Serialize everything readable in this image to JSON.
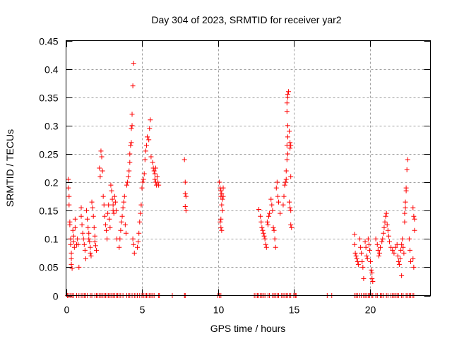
{
  "chart_data": {
    "type": "scatter",
    "title": "Day 304 of 2023, SRMTID for receiver yar2",
    "xlabel": "GPS time / hours",
    "ylabel": "SRMTID / TECUs",
    "xlim": [
      0,
      24
    ],
    "ylim": [
      0,
      0.45
    ],
    "xticks": [
      0,
      5,
      10,
      15,
      20
    ],
    "xtick_labels": [
      "0",
      "5",
      "10",
      "15",
      "20"
    ],
    "yticks": [
      0,
      0.05,
      0.1,
      0.15,
      0.2,
      0.25,
      0.3,
      0.35,
      0.4,
      0.45
    ],
    "ytick_labels": [
      "0",
      "0.05",
      "0.1",
      "0.15",
      "0.2",
      "0.25",
      "0.3",
      "0.35",
      "0.4",
      "0.45"
    ],
    "grid": true,
    "legend": "none",
    "marker": "plus",
    "series": [
      {
        "name": "SRMTID",
        "color": "#ff0000",
        "points": [
          [
            0.15,
            0.205
          ],
          [
            0.15,
            0.19
          ],
          [
            0.2,
            0.175
          ],
          [
            0.2,
            0.16
          ],
          [
            0.25,
            0.13
          ],
          [
            0.25,
            0.125
          ],
          [
            0.3,
            0.1
          ],
          [
            0.3,
            0.09
          ],
          [
            0.35,
            0.075
          ],
          [
            0.35,
            0.065
          ],
          [
            0.35,
            0.055
          ],
          [
            0.4,
            0.048
          ],
          [
            0.45,
            0.115
          ],
          [
            0.5,
            0.105
          ],
          [
            0.5,
            0.095
          ],
          [
            0.55,
            0.085
          ],
          [
            0.6,
            0.135
          ],
          [
            0.6,
            0.12
          ],
          [
            0.7,
            0.09
          ],
          [
            0.75,
            0.1
          ],
          [
            0.8,
            0.09
          ],
          [
            0.85,
            0.05
          ],
          [
            1.0,
            0.155
          ],
          [
            1.0,
            0.14
          ],
          [
            1.05,
            0.125
          ],
          [
            1.1,
            0.11
          ],
          [
            1.15,
            0.1
          ],
          [
            1.2,
            0.09
          ],
          [
            1.25,
            0.08
          ],
          [
            1.3,
            0.065
          ],
          [
            1.35,
            0.15
          ],
          [
            1.4,
            0.135
          ],
          [
            1.45,
            0.12
          ],
          [
            1.5,
            0.11
          ],
          [
            1.5,
            0.1
          ],
          [
            1.55,
            0.095
          ],
          [
            1.6,
            0.085
          ],
          [
            1.6,
            0.075
          ],
          [
            1.65,
            0.07
          ],
          [
            1.7,
            0.165
          ],
          [
            1.75,
            0.155
          ],
          [
            1.8,
            0.14
          ],
          [
            1.85,
            0.12
          ],
          [
            1.9,
            0.105
          ],
          [
            1.9,
            0.095
          ],
          [
            1.95,
            0.088
          ],
          [
            2.0,
            0.08
          ],
          [
            2.2,
            0.225
          ],
          [
            2.25,
            0.21
          ],
          [
            2.3,
            0.255
          ],
          [
            2.35,
            0.245
          ],
          [
            2.4,
            0.22
          ],
          [
            2.45,
            0.175
          ],
          [
            2.5,
            0.16
          ],
          [
            2.55,
            0.14
          ],
          [
            2.6,
            0.125
          ],
          [
            2.65,
            0.115
          ],
          [
            2.7,
            0.1
          ],
          [
            2.75,
            0.145
          ],
          [
            2.8,
            0.16
          ],
          [
            2.85,
            0.135
          ],
          [
            2.9,
            0.12
          ],
          [
            2.95,
            0.195
          ],
          [
            3.0,
            0.185
          ],
          [
            3.05,
            0.17
          ],
          [
            3.1,
            0.16
          ],
          [
            3.1,
            0.15
          ],
          [
            3.15,
            0.145
          ],
          [
            3.2,
            0.175
          ],
          [
            3.25,
            0.165
          ],
          [
            3.3,
            0.15
          ],
          [
            3.35,
            0.1
          ],
          [
            3.5,
            0.085
          ],
          [
            3.55,
            0.1
          ],
          [
            3.6,
            0.115
          ],
          [
            3.65,
            0.13
          ],
          [
            3.7,
            0.14
          ],
          [
            3.75,
            0.155
          ],
          [
            3.8,
            0.165
          ],
          [
            3.85,
            0.175
          ],
          [
            3.9,
            0.125
          ],
          [
            3.95,
            0.11
          ],
          [
            4.0,
            0.195
          ],
          [
            4.05,
            0.2
          ],
          [
            4.1,
            0.21
          ],
          [
            4.15,
            0.22
          ],
          [
            4.2,
            0.235
          ],
          [
            4.2,
            0.25
          ],
          [
            4.25,
            0.265
          ],
          [
            4.3,
            0.27
          ],
          [
            4.3,
            0.295
          ],
          [
            4.35,
            0.3
          ],
          [
            4.35,
            0.32
          ],
          [
            4.4,
            0.37
          ],
          [
            4.45,
            0.41
          ],
          [
            4.4,
            0.1
          ],
          [
            4.45,
            0.09
          ],
          [
            4.5,
            0.075
          ],
          [
            4.7,
            0.085
          ],
          [
            4.75,
            0.095
          ],
          [
            4.8,
            0.11
          ],
          [
            4.85,
            0.13
          ],
          [
            4.9,
            0.145
          ],
          [
            4.95,
            0.16
          ],
          [
            5.0,
            0.19
          ],
          [
            5.05,
            0.2
          ],
          [
            5.1,
            0.205
          ],
          [
            5.15,
            0.215
          ],
          [
            5.2,
            0.24
          ],
          [
            5.25,
            0.255
          ],
          [
            5.3,
            0.265
          ],
          [
            5.35,
            0.28
          ],
          [
            5.45,
            0.275
          ],
          [
            5.5,
            0.295
          ],
          [
            5.55,
            0.31
          ],
          [
            5.6,
            0.245
          ],
          [
            5.7,
            0.235
          ],
          [
            5.75,
            0.225
          ],
          [
            5.8,
            0.22
          ],
          [
            5.85,
            0.215
          ],
          [
            5.85,
            0.205
          ],
          [
            5.9,
            0.2
          ],
          [
            5.95,
            0.195
          ],
          [
            6.0,
            0.21
          ],
          [
            6.05,
            0.2
          ],
          [
            6.1,
            0.195
          ],
          [
            5.9,
            0.225
          ],
          [
            7.8,
            0.24
          ],
          [
            7.85,
            0.2
          ],
          [
            7.85,
            0.18
          ],
          [
            7.9,
            0.175
          ],
          [
            7.85,
            0.157
          ],
          [
            7.9,
            0.15
          ],
          [
            10.1,
            0.2
          ],
          [
            10.15,
            0.19
          ],
          [
            10.2,
            0.185
          ],
          [
            10.25,
            0.18
          ],
          [
            10.2,
            0.175
          ],
          [
            10.3,
            0.17
          ],
          [
            10.25,
            0.16
          ],
          [
            10.3,
            0.15
          ],
          [
            10.2,
            0.135
          ],
          [
            10.15,
            0.13
          ],
          [
            10.2,
            0.12
          ],
          [
            10.25,
            0.115
          ],
          [
            10.35,
            0.175
          ],
          [
            10.35,
            0.19
          ],
          [
            12.7,
            0.152
          ],
          [
            12.8,
            0.14
          ],
          [
            12.85,
            0.13
          ],
          [
            12.9,
            0.12
          ],
          [
            12.95,
            0.115
          ],
          [
            13.0,
            0.11
          ],
          [
            13.05,
            0.105
          ],
          [
            13.1,
            0.1
          ],
          [
            13.15,
            0.09
          ],
          [
            13.2,
            0.085
          ],
          [
            13.25,
            0.13
          ],
          [
            13.3,
            0.125
          ],
          [
            13.35,
            0.14
          ],
          [
            13.4,
            0.145
          ],
          [
            13.5,
            0.17
          ],
          [
            13.55,
            0.16
          ],
          [
            13.6,
            0.15
          ],
          [
            13.65,
            0.12
          ],
          [
            13.7,
            0.115
          ],
          [
            13.75,
            0.1
          ],
          [
            13.8,
            0.085
          ],
          [
            13.85,
            0.19
          ],
          [
            13.9,
            0.2
          ],
          [
            13.95,
            0.175
          ],
          [
            14.0,
            0.165
          ],
          [
            14.1,
            0.145
          ],
          [
            14.3,
            0.16
          ],
          [
            14.35,
            0.175
          ],
          [
            14.4,
            0.195
          ],
          [
            14.45,
            0.2
          ],
          [
            14.5,
            0.205
          ],
          [
            14.5,
            0.22
          ],
          [
            14.55,
            0.24
          ],
          [
            14.6,
            0.25
          ],
          [
            14.55,
            0.265
          ],
          [
            14.6,
            0.28
          ],
          [
            14.6,
            0.3
          ],
          [
            14.55,
            0.325
          ],
          [
            14.55,
            0.34
          ],
          [
            14.6,
            0.35
          ],
          [
            14.6,
            0.355
          ],
          [
            14.65,
            0.36
          ],
          [
            14.7,
            0.29
          ],
          [
            14.75,
            0.27
          ],
          [
            14.75,
            0.26
          ],
          [
            14.8,
            0.265
          ],
          [
            14.8,
            0.21
          ],
          [
            14.7,
            0.165
          ],
          [
            14.75,
            0.155
          ],
          [
            14.8,
            0.15
          ],
          [
            14.8,
            0.125
          ],
          [
            14.85,
            0.12
          ],
          [
            19.0,
            0.108
          ],
          [
            19.0,
            0.09
          ],
          [
            19.05,
            0.075
          ],
          [
            19.1,
            0.07
          ],
          [
            19.15,
            0.065
          ],
          [
            19.2,
            0.06
          ],
          [
            19.25,
            0.055
          ],
          [
            19.35,
            0.1
          ],
          [
            19.4,
            0.085
          ],
          [
            19.45,
            0.075
          ],
          [
            19.5,
            0.06
          ],
          [
            19.55,
            0.05
          ],
          [
            19.6,
            0.03
          ],
          [
            19.7,
            0.095
          ],
          [
            19.75,
            0.085
          ],
          [
            19.8,
            0.07
          ],
          [
            19.85,
            0.065
          ],
          [
            19.9,
            0.1
          ],
          [
            19.95,
            0.09
          ],
          [
            20.0,
            0.08
          ],
          [
            20.05,
            0.06
          ],
          [
            20.1,
            0.045
          ],
          [
            20.15,
            0.04
          ],
          [
            20.15,
            0.03
          ],
          [
            20.2,
            0.025
          ],
          [
            20.4,
            0.1
          ],
          [
            20.5,
            0.09
          ],
          [
            20.55,
            0.08
          ],
          [
            20.6,
            0.07
          ],
          [
            20.65,
            0.075
          ],
          [
            20.7,
            0.085
          ],
          [
            20.8,
            0.095
          ],
          [
            20.85,
            0.1
          ],
          [
            20.9,
            0.11
          ],
          [
            20.95,
            0.12
          ],
          [
            21.0,
            0.13
          ],
          [
            21.05,
            0.14
          ],
          [
            21.1,
            0.145
          ],
          [
            21.15,
            0.125
          ],
          [
            21.2,
            0.115
          ],
          [
            21.25,
            0.105
          ],
          [
            21.3,
            0.095
          ],
          [
            21.4,
            0.085
          ],
          [
            21.5,
            0.08
          ],
          [
            21.6,
            0.075
          ],
          [
            21.7,
            0.085
          ],
          [
            21.8,
            0.09
          ],
          [
            21.85,
            0.07
          ],
          [
            21.9,
            0.06
          ],
          [
            21.95,
            0.055
          ],
          [
            22.0,
            0.065
          ],
          [
            22.05,
            0.08
          ],
          [
            22.1,
            0.09
          ],
          [
            22.15,
            0.1
          ],
          [
            22.2,
            0.085
          ],
          [
            22.25,
            0.075
          ],
          [
            22.1,
            0.035
          ],
          [
            22.3,
            0.13
          ],
          [
            22.3,
            0.145
          ],
          [
            22.35,
            0.155
          ],
          [
            22.35,
            0.165
          ],
          [
            22.4,
            0.185
          ],
          [
            22.4,
            0.19
          ],
          [
            22.45,
            0.222
          ],
          [
            22.5,
            0.24
          ],
          [
            22.6,
            0.1
          ],
          [
            22.65,
            0.08
          ],
          [
            22.7,
            0.06
          ],
          [
            22.85,
            0.155
          ],
          [
            22.9,
            0.14
          ],
          [
            22.95,
            0.135
          ],
          [
            22.95,
            0.115
          ],
          [
            22.85,
            0.065
          ],
          [
            22.9,
            0.05
          ]
        ]
      }
    ],
    "zero_markers_hours": [
      0.1,
      0.2,
      0.3,
      0.4,
      0.5,
      0.7,
      0.85,
      1.0,
      1.1,
      1.2,
      1.3,
      1.4,
      1.6,
      1.7,
      1.9,
      2.0,
      2.1,
      2.2,
      2.3,
      2.4,
      2.5,
      2.6,
      2.7,
      2.8,
      2.9,
      3.0,
      3.1,
      3.2,
      3.3,
      3.4,
      3.5,
      3.6,
      3.75,
      4.0,
      4.1,
      4.2,
      4.35,
      4.5,
      4.6,
      4.7,
      4.85,
      5.0,
      5.1,
      5.2,
      5.3,
      5.4,
      5.5,
      5.6,
      5.7,
      5.8,
      6.1,
      6.15,
      7.0,
      7.8,
      7.85,
      10.0,
      10.1,
      10.2,
      12.4,
      12.5,
      12.6,
      12.7,
      12.8,
      12.9,
      13.0,
      13.1,
      13.3,
      13.4,
      13.6,
      13.7,
      13.8,
      13.9,
      14.0,
      14.2,
      14.3,
      14.4,
      14.5,
      14.6,
      14.7,
      14.8,
      15.0,
      15.1,
      15.15,
      17.2,
      17.5,
      19.0,
      19.1,
      19.2,
      19.35,
      19.45,
      19.6,
      19.7,
      19.8,
      19.9,
      20.0,
      20.1,
      20.2,
      20.4,
      20.5,
      20.7,
      20.8,
      20.9,
      21.1,
      21.2,
      21.4,
      21.5,
      21.6,
      21.7,
      21.8,
      21.9,
      22.1,
      22.2,
      22.4,
      22.5,
      22.6,
      22.7,
      22.8,
      22.9
    ]
  }
}
